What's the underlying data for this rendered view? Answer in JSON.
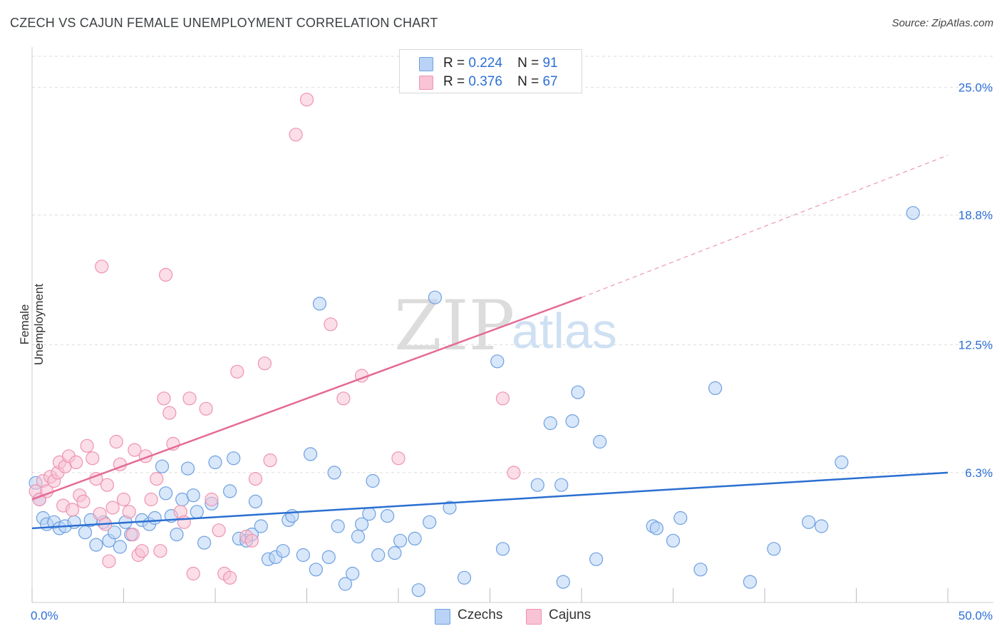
{
  "header": {
    "title": "CZECH VS CAJUN FEMALE UNEMPLOYMENT CORRELATION CHART",
    "source": "Source: ZipAtlas.com"
  },
  "watermark": {
    "zip": "ZIP",
    "atlas": "atlas"
  },
  "legend_top": {
    "rows": [
      {
        "r_label": "R =",
        "r_value": "0.224",
        "n_label": "N =",
        "n_value": "91"
      },
      {
        "r_label": "R =",
        "r_value": "0.376",
        "n_label": "N =",
        "n_value": "67"
      }
    ]
  },
  "bottom_legend": {
    "czechs": "Czechs",
    "cajuns": "Cajuns"
  },
  "colors": {
    "czech_fill": "#b8d3f5",
    "czech_stroke": "#6ea0e0",
    "czech_line": "#2a6fd1",
    "cajun_fill": "#f8c3d4",
    "cajun_stroke": "#ee93b2",
    "cajun_line": "#e46a95",
    "tick_text": "#2b6fd6",
    "grid": "#dddddd"
  },
  "chart_data": {
    "type": "scatter",
    "title": "CZECH VS CAJUN FEMALE UNEMPLOYMENT CORRELATION CHART",
    "xlabel": "",
    "ylabel": "Female Unemployment",
    "xlim": [
      0,
      50
    ],
    "ylim": [
      0,
      26.5
    ],
    "x_tick_labels": [
      "0.0%",
      "50.0%"
    ],
    "y_ticks": [
      6.3,
      12.5,
      18.8,
      25.0
    ],
    "y_tick_labels": [
      "6.3%",
      "12.5%",
      "18.8%",
      "25.0%"
    ],
    "grid": true,
    "legend_position": "top-center",
    "series": [
      {
        "name": "Czechs",
        "r": 0.224,
        "n": 91,
        "trend": {
          "x": [
            0,
            50
          ],
          "y": [
            3.6,
            6.3
          ],
          "dashed_to": null
        },
        "points": [
          [
            0.2,
            5.8
          ],
          [
            0.4,
            5.0
          ],
          [
            0.6,
            4.1
          ],
          [
            0.8,
            3.8
          ],
          [
            1.2,
            3.9
          ],
          [
            1.5,
            3.6
          ],
          [
            1.8,
            3.7
          ],
          [
            2.3,
            3.9
          ],
          [
            2.9,
            3.4
          ],
          [
            3.2,
            4.0
          ],
          [
            3.5,
            2.8
          ],
          [
            3.9,
            3.9
          ],
          [
            4.2,
            3.0
          ],
          [
            4.5,
            3.4
          ],
          [
            4.8,
            2.7
          ],
          [
            5.1,
            3.9
          ],
          [
            5.4,
            3.3
          ],
          [
            6.0,
            4.0
          ],
          [
            6.4,
            3.8
          ],
          [
            6.7,
            4.1
          ],
          [
            7.1,
            6.6
          ],
          [
            7.3,
            5.3
          ],
          [
            7.6,
            4.2
          ],
          [
            7.9,
            3.3
          ],
          [
            8.2,
            5.0
          ],
          [
            8.5,
            6.5
          ],
          [
            8.8,
            5.2
          ],
          [
            9.0,
            4.4
          ],
          [
            9.4,
            2.9
          ],
          [
            9.8,
            4.8
          ],
          [
            10.0,
            6.8
          ],
          [
            10.8,
            5.4
          ],
          [
            11.0,
            7.0
          ],
          [
            11.3,
            3.1
          ],
          [
            11.7,
            3.0
          ],
          [
            12.0,
            3.3
          ],
          [
            12.2,
            4.9
          ],
          [
            12.5,
            3.7
          ],
          [
            12.9,
            2.1
          ],
          [
            13.3,
            2.2
          ],
          [
            13.7,
            2.5
          ],
          [
            14.0,
            4.0
          ],
          [
            14.2,
            4.2
          ],
          [
            14.8,
            2.3
          ],
          [
            15.2,
            7.2
          ],
          [
            15.5,
            1.6
          ],
          [
            15.7,
            14.5
          ],
          [
            16.2,
            2.2
          ],
          [
            16.5,
            6.3
          ],
          [
            16.7,
            3.7
          ],
          [
            17.1,
            0.9
          ],
          [
            17.5,
            1.4
          ],
          [
            17.8,
            3.2
          ],
          [
            18.0,
            3.8
          ],
          [
            18.4,
            4.3
          ],
          [
            18.6,
            5.9
          ],
          [
            18.9,
            2.3
          ],
          [
            19.4,
            4.2
          ],
          [
            19.8,
            2.4
          ],
          [
            20.1,
            3.0
          ],
          [
            20.9,
            3.1
          ],
          [
            21.1,
            0.6
          ],
          [
            21.7,
            3.9
          ],
          [
            22.0,
            14.8
          ],
          [
            22.8,
            4.6
          ],
          [
            23.6,
            1.2
          ],
          [
            25.4,
            11.7
          ],
          [
            25.7,
            2.6
          ],
          [
            27.6,
            5.7
          ],
          [
            28.3,
            8.7
          ],
          [
            28.9,
            5.7
          ],
          [
            29.0,
            1.0
          ],
          [
            29.5,
            8.8
          ],
          [
            29.8,
            10.2
          ],
          [
            30.8,
            2.1
          ],
          [
            31.0,
            7.8
          ],
          [
            33.9,
            3.7
          ],
          [
            34.1,
            3.6
          ],
          [
            35.0,
            3.0
          ],
          [
            35.4,
            4.1
          ],
          [
            36.5,
            1.6
          ],
          [
            37.3,
            10.4
          ],
          [
            39.2,
            1.0
          ],
          [
            40.5,
            2.6
          ],
          [
            42.4,
            3.9
          ],
          [
            43.1,
            3.7
          ],
          [
            44.2,
            6.8
          ],
          [
            48.1,
            18.9
          ]
        ]
      },
      {
        "name": "Cajuns",
        "r": 0.376,
        "n": 67,
        "trend": {
          "x": [
            0,
            30
          ],
          "y": [
            5.0,
            14.8
          ],
          "dashed_to": [
            50,
            21.7
          ]
        },
        "points": [
          [
            0.2,
            5.4
          ],
          [
            0.4,
            5.0
          ],
          [
            0.6,
            5.9
          ],
          [
            0.8,
            5.4
          ],
          [
            1.0,
            6.1
          ],
          [
            1.2,
            5.9
          ],
          [
            1.4,
            6.3
          ],
          [
            1.5,
            6.8
          ],
          [
            1.7,
            4.7
          ],
          [
            1.8,
            6.6
          ],
          [
            2.0,
            7.1
          ],
          [
            2.2,
            4.5
          ],
          [
            2.4,
            6.8
          ],
          [
            2.6,
            5.2
          ],
          [
            2.8,
            4.9
          ],
          [
            3.0,
            7.6
          ],
          [
            3.3,
            7.0
          ],
          [
            3.5,
            6.0
          ],
          [
            3.7,
            4.3
          ],
          [
            3.8,
            16.3
          ],
          [
            4.0,
            3.8
          ],
          [
            4.1,
            5.7
          ],
          [
            4.2,
            2.0
          ],
          [
            4.4,
            4.6
          ],
          [
            4.6,
            7.8
          ],
          [
            4.8,
            6.7
          ],
          [
            5.0,
            5.0
          ],
          [
            5.3,
            4.4
          ],
          [
            5.5,
            3.3
          ],
          [
            5.6,
            7.4
          ],
          [
            5.8,
            2.3
          ],
          [
            6.0,
            2.5
          ],
          [
            6.2,
            7.1
          ],
          [
            6.5,
            5.0
          ],
          [
            6.8,
            6.0
          ],
          [
            7.0,
            2.5
          ],
          [
            7.2,
            9.9
          ],
          [
            7.3,
            15.9
          ],
          [
            7.5,
            9.2
          ],
          [
            7.7,
            7.7
          ],
          [
            8.1,
            4.4
          ],
          [
            8.3,
            3.9
          ],
          [
            8.6,
            9.9
          ],
          [
            8.8,
            1.4
          ],
          [
            9.5,
            9.4
          ],
          [
            9.8,
            5.0
          ],
          [
            10.2,
            3.5
          ],
          [
            10.5,
            1.4
          ],
          [
            10.8,
            1.2
          ],
          [
            11.2,
            11.2
          ],
          [
            11.7,
            3.2
          ],
          [
            12.0,
            3.0
          ],
          [
            12.2,
            6.0
          ],
          [
            12.7,
            11.6
          ],
          [
            13.0,
            6.9
          ],
          [
            14.4,
            22.7
          ],
          [
            15.0,
            24.4
          ],
          [
            16.3,
            13.5
          ],
          [
            17.0,
            9.9
          ],
          [
            18.0,
            11.0
          ],
          [
            20.0,
            7.0
          ],
          [
            25.7,
            9.9
          ],
          [
            26.3,
            6.3
          ]
        ]
      }
    ]
  }
}
